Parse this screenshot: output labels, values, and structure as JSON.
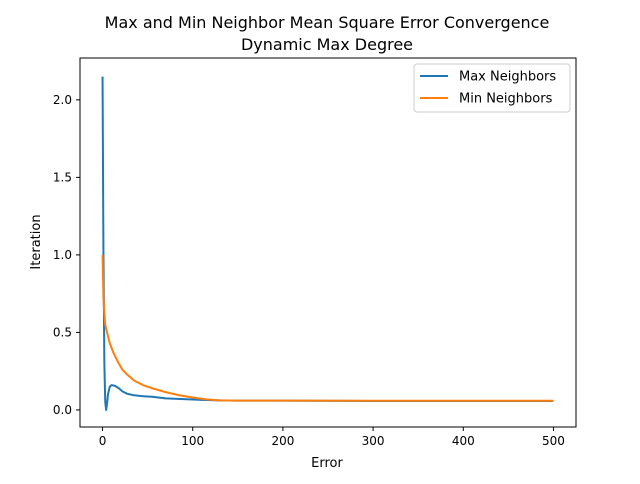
{
  "chart_data": {
    "type": "line",
    "title": "Max and Min Neighbor Mean Square Error Convergence",
    "subtitle": "Dynamic Max Degree",
    "xlabel": "Error",
    "ylabel": "Iteration",
    "xlim": [
      -25,
      525
    ],
    "ylim": [
      -0.11,
      2.27
    ],
    "xticks": [
      0,
      100,
      200,
      300,
      400,
      500
    ],
    "yticks": [
      0.0,
      0.5,
      1.0,
      1.5,
      2.0
    ],
    "xtick_labels": [
      "0",
      "100",
      "200",
      "300",
      "400",
      "500"
    ],
    "ytick_labels": [
      "0.0",
      "0.5",
      "1.0",
      "1.5",
      "2.0"
    ],
    "grid": false,
    "legend_position": "top-right",
    "series": [
      {
        "name": "Max Neighbors",
        "color": "#1f77b4",
        "x": [
          0,
          1,
          2,
          3,
          4,
          5,
          6,
          8,
          10,
          14,
          18,
          22,
          27,
          35,
          45,
          55,
          70,
          90,
          110,
          130,
          150,
          200,
          300,
          400,
          500
        ],
        "y": [
          2.15,
          1.0,
          0.3,
          0.05,
          0.0,
          0.04,
          0.1,
          0.15,
          0.16,
          0.155,
          0.14,
          0.12,
          0.105,
          0.095,
          0.088,
          0.085,
          0.075,
          0.07,
          0.065,
          0.062,
          0.06,
          0.06,
          0.058,
          0.058,
          0.058
        ]
      },
      {
        "name": "Min Neighbors",
        "color": "#ff7f0e",
        "x": [
          0,
          1,
          2,
          3,
          5,
          8,
          12,
          17,
          22,
          27,
          35,
          45,
          55,
          70,
          85,
          100,
          115,
          130,
          150,
          200,
          300,
          400,
          500
        ],
        "y": [
          1.0,
          0.72,
          0.62,
          0.55,
          0.5,
          0.43,
          0.37,
          0.31,
          0.26,
          0.23,
          0.19,
          0.16,
          0.14,
          0.115,
          0.095,
          0.08,
          0.068,
          0.062,
          0.06,
          0.06,
          0.059,
          0.059,
          0.059
        ]
      }
    ]
  }
}
